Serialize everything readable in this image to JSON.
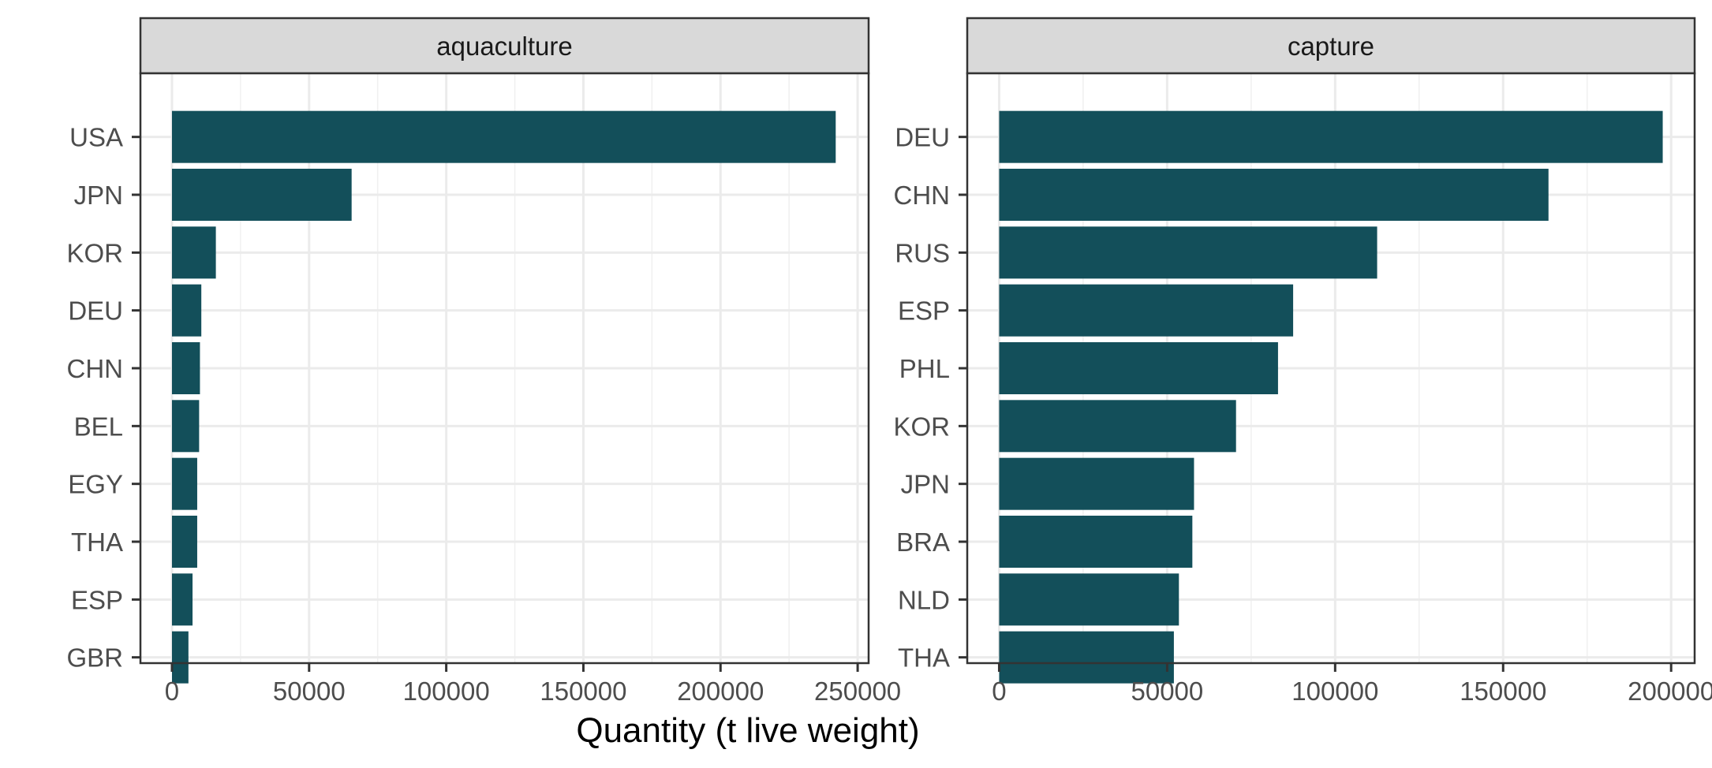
{
  "chart_data": {
    "type": "bar",
    "orientation": "horizontal",
    "xlabel": "Quantity (t live weight)",
    "ylabel": "",
    "grid": true,
    "bar_color": "#134f5a",
    "panels": [
      {
        "strip": "aquaculture",
        "categories": [
          "USA",
          "JPN",
          "KOR",
          "DEU",
          "CHN",
          "BEL",
          "EGY",
          "THA",
          "ESP",
          "GBR"
        ],
        "values": [
          242000,
          65500,
          16000,
          10700,
          10200,
          9900,
          9200,
          9200,
          7500,
          6000
        ],
        "xlim": [
          -11500,
          254000
        ],
        "xticks": [
          0,
          50000,
          100000,
          150000,
          200000,
          250000
        ],
        "xtick_labels": [
          "0",
          "50000",
          "100000",
          "150000",
          "200000",
          "250000"
        ]
      },
      {
        "strip": "capture",
        "categories": [
          "DEU",
          "CHN",
          "RUS",
          "ESP",
          "PHL",
          "KOR",
          "JPN",
          "BRA",
          "NLD",
          "THA"
        ],
        "values": [
          197500,
          163500,
          112500,
          87500,
          83000,
          70500,
          58000,
          57500,
          53500,
          52000
        ],
        "xlim": [
          -9500,
          207000
        ],
        "xticks": [
          0,
          50000,
          100000,
          150000,
          200000
        ],
        "xtick_labels": [
          "0",
          "50000",
          "100000",
          "150000",
          "200000"
        ]
      }
    ]
  }
}
